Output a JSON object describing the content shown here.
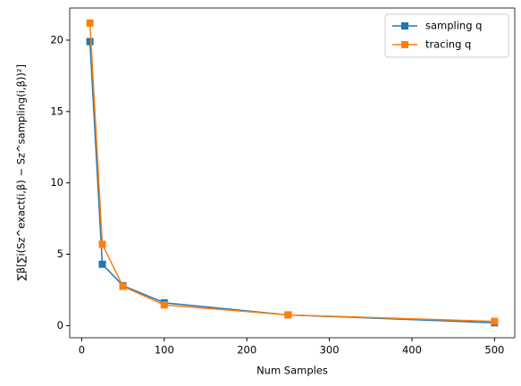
{
  "chart_data": {
    "type": "line",
    "x_label": "Num Samples",
    "y_label": "∑β[∑i(Sz^exact(i,β) − Sz^sampling(i,β))²]",
    "x": [
      10,
      25,
      50,
      100,
      250,
      500
    ],
    "series": [
      {
        "name": "sampling q",
        "color": "#1f77b4",
        "values": [
          19.9,
          4.3,
          2.8,
          1.6,
          0.75,
          0.2
        ]
      },
      {
        "name": "tracing q",
        "color": "#ff7f0e",
        "values": [
          21.2,
          5.7,
          2.75,
          1.45,
          0.75,
          0.3
        ]
      }
    ],
    "xlim": [
      -14.5,
      524.5
    ],
    "xticks": [
      0,
      100,
      200,
      300,
      400,
      500
    ],
    "ylim": [
      -0.85,
      22.25
    ],
    "yticks": [
      0,
      5,
      10,
      15,
      20
    ],
    "legend": "upper right"
  }
}
